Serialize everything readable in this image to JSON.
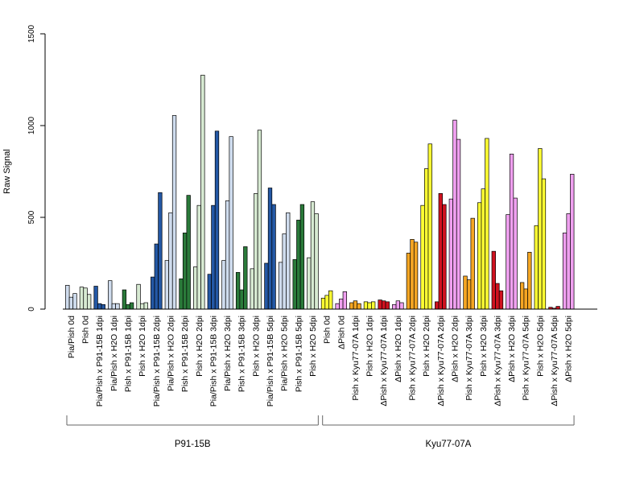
{
  "chart_data": {
    "type": "bar",
    "ylabel": "Raw Signal",
    "xlabel": "",
    "ylim": [
      0,
      1500
    ],
    "yticks": [
      0,
      500,
      1000,
      1500
    ],
    "categories": [
      "Pia/Pish 0d",
      "Pish 0d",
      "Pia/Pish x P91-15B 1dpi",
      "Pia/Pish x H2O 1dpi",
      "Pish x P91-15B 1dpi",
      "Pish x H2O 1dpi",
      "Pia/Pish x P91-15B 2dpi",
      "Pia/Pish x H2O 2dpi",
      "Pish x P91-15B 2dpi",
      "Pish x H2O 2dpi",
      "Pia/Pish x P91-15B 3dpi",
      "Pia/Pish x H2O 3dpi",
      "Pish x P91-15B 3dpi",
      "Pish x H2O 3dpi",
      "Pia/Pish x P91-15B 5dpi",
      "Pia/Pish x H2O 5dpi",
      "Pish x P91-15B 5dpi",
      "Pish x H2O 5dpi",
      "Pish 0d",
      "ΔPish 0d",
      "Pish x Kyu77-07A 1dpi",
      "Pish x H2O 1dpi",
      "ΔPish x Kyu77-07A 1dpi",
      "ΔPish x H2O 1dpi",
      "Pish x Kyu77-07A 2dpi",
      "Pish x H2O 2dpi",
      "ΔPish x Kyu77-07A 2dpi",
      "ΔPish x H2O 2dpi",
      "Pish x Kyu77-07A 3dpi",
      "Pish x H2O 3dpi",
      "ΔPish x Kyu77-07A 3dpi",
      "ΔPish x H2O 3dpi",
      "Pish x Kyu77-07A 5dpi",
      "Pish x H2O 5dpi",
      "ΔPish x Kyu77-07A 5dpi",
      "ΔPish x H2O 5dpi"
    ],
    "values": [
      [
        130,
        65,
        85
      ],
      [
        120,
        115,
        80
      ],
      [
        125,
        30,
        25
      ],
      [
        155,
        30,
        30
      ],
      [
        105,
        25,
        35
      ],
      [
        135,
        30,
        35
      ],
      [
        175,
        355,
        635
      ],
      [
        265,
        525,
        1055
      ],
      [
        165,
        415,
        620
      ],
      [
        230,
        565,
        1275
      ],
      [
        190,
        565,
        970
      ],
      [
        265,
        590,
        940
      ],
      [
        200,
        105,
        340
      ],
      [
        220,
        630,
        975
      ],
      [
        250,
        660,
        570
      ],
      [
        255,
        410,
        525
      ],
      [
        270,
        485,
        570
      ],
      [
        280,
        585,
        520
      ],
      [
        60,
        75,
        100
      ],
      [
        30,
        55,
        95
      ],
      [
        35,
        45,
        30
      ],
      [
        40,
        35,
        40
      ],
      [
        50,
        45,
        40
      ],
      [
        25,
        45,
        35
      ],
      [
        305,
        380,
        365
      ],
      [
        565,
        765,
        900
      ],
      [
        40,
        630,
        570
      ],
      [
        600,
        1030,
        925
      ],
      [
        180,
        160,
        495
      ],
      [
        580,
        655,
        930
      ],
      [
        315,
        140,
        100
      ],
      [
        515,
        845,
        605
      ],
      [
        145,
        110,
        310
      ],
      [
        455,
        875,
        710
      ],
      [
        10,
        5,
        15
      ],
      [
        415,
        520,
        735
      ]
    ],
    "bar_colors": [
      "#cfdcee",
      "#d7ead2",
      "#2458a5",
      "#cfdcee",
      "#2a7a3a",
      "#d7ead2",
      "#2458a5",
      "#cfdcee",
      "#2a7a3a",
      "#d7ead2",
      "#2458a5",
      "#cfdcee",
      "#2a7a3a",
      "#d7ead2",
      "#2458a5",
      "#cfdcee",
      "#2a7a3a",
      "#d7ead2",
      "#ffff33",
      "#f0a0f0",
      "#f5a623",
      "#ffff33",
      "#d0121f",
      "#f0a0f0",
      "#f5a623",
      "#ffff33",
      "#d0121f",
      "#f0a0f0",
      "#f5a623",
      "#ffff33",
      "#d0121f",
      "#f0a0f0",
      "#f5a623",
      "#ffff33",
      "#d0121f",
      "#f0a0f0"
    ],
    "groups": [
      {
        "label": "P91-15B",
        "start": 0,
        "end": 17
      },
      {
        "label": "Kyu77-07A",
        "start": 18,
        "end": 35
      }
    ],
    "grid": false,
    "legend": "none"
  }
}
